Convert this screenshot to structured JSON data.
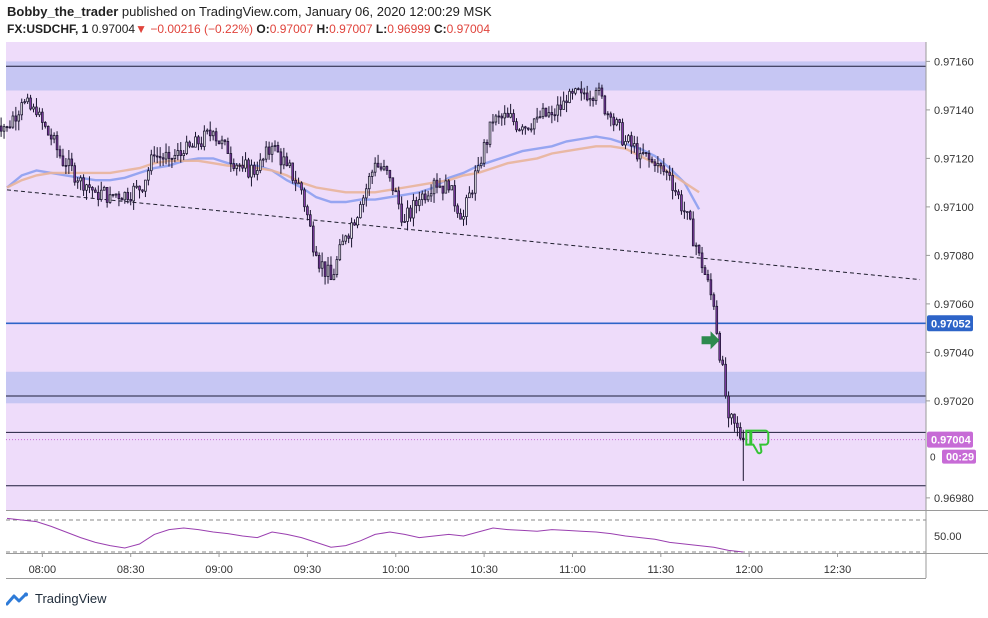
{
  "header": {
    "author": "Bobby_the_trader",
    "published_text": "published on TradingView.com, January 06, 2020 12:00:29 MSK",
    "symbol": "FX:USDCHF, 1",
    "last": "0.97004",
    "change": "−0.00216 (−0.22%)",
    "o_label": "O:",
    "o_value": "0.97007",
    "h_label": "H:",
    "h_value": "0.97007",
    "l_label": "L:",
    "l_value": "0.96999",
    "c_label": "C:",
    "c_value": "0.97004"
  },
  "price_axis": {
    "ticks": [
      "0.97160",
      "0.97140",
      "0.97120",
      "0.97100",
      "0.97080",
      "0.97060",
      "0.97040",
      "0.97020",
      "0.96980"
    ],
    "tick_values": [
      0.9716,
      0.9714,
      0.9712,
      0.971,
      0.9708,
      0.9706,
      0.9704,
      0.9702,
      0.9698
    ],
    "level_badge": "0.97052",
    "price_badge": "0.97004",
    "countdown_badge": "00:29",
    "hidden_tick_glyph": "0"
  },
  "rsi_axis": {
    "tick": "50.00"
  },
  "time_axis": {
    "ticks": [
      "08:00",
      "08:30",
      "09:00",
      "09:30",
      "10:00",
      "10:30",
      "11:00",
      "11:30",
      "12:00",
      "12:30"
    ]
  },
  "footer": {
    "brand": "TradingView",
    "logo_icon": "tradingview-logo-icon"
  },
  "colors": {
    "background": "#eedcfa",
    "zone": "#c6c6f3",
    "candle_body": "#8b3fb0",
    "candle_border": "#1b1530",
    "level_line": "#1d1d3a",
    "blue_level": "#2d64c8",
    "ma_blue": "#8c9eef",
    "ma_orange": "#e8b49a",
    "rsi_line": "#9a3fb0",
    "badge_purple": "#c76bd6",
    "badge_blue": "#2d64c8",
    "arrow_green": "#2d8a4e",
    "thumb_green": "#34c434"
  },
  "chart_data": [
    {
      "type": "candlestick",
      "title": "FX:USDCHF, 1",
      "x_range": [
        "07:48",
        "12:58"
      ],
      "ylim": [
        0.96975,
        0.97168
      ],
      "grid": false,
      "horizontal_zones": [
        [
          0.97148,
          0.9716
        ],
        [
          0.97019,
          0.97032
        ]
      ],
      "horizontal_levels": [
        0.97158,
        0.97052,
        0.97022,
        0.97007,
        0.96985
      ],
      "current_price_line": 0.97004,
      "trendline": {
        "start": [
          "07:48",
          0.97107
        ],
        "end": [
          "12:58",
          0.9707
        ]
      },
      "series": [
        {
          "name": "USDCHF",
          "x": [
            "07:48",
            "07:53",
            "07:58",
            "08:03",
            "08:08",
            "08:13",
            "08:18",
            "08:23",
            "08:28",
            "08:33",
            "08:38",
            "08:43",
            "08:48",
            "08:53",
            "08:58",
            "09:03",
            "09:08",
            "09:13",
            "09:18",
            "09:23",
            "09:28",
            "09:33",
            "09:38",
            "09:43",
            "09:48",
            "09:53",
            "09:58",
            "10:03",
            "10:08",
            "10:13",
            "10:18",
            "10:23",
            "10:28",
            "10:33",
            "10:38",
            "10:43",
            "10:48",
            "10:53",
            "10:58",
            "11:03",
            "11:08",
            "11:13",
            "11:18",
            "11:23",
            "11:28",
            "11:33",
            "11:38",
            "11:43",
            "11:48",
            "11:53",
            "11:58"
          ],
          "close": [
            0.97133,
            0.97143,
            0.97138,
            0.97128,
            0.97117,
            0.97112,
            0.97106,
            0.97105,
            0.97106,
            0.97107,
            0.97121,
            0.9712,
            0.97122,
            0.97126,
            0.97131,
            0.97122,
            0.97116,
            0.97115,
            0.97125,
            0.97117,
            0.97107,
            0.9708,
            0.9707,
            0.97088,
            0.97101,
            0.97118,
            0.97112,
            0.97094,
            0.97103,
            0.97111,
            0.97107,
            0.97096,
            0.97117,
            0.97135,
            0.97137,
            0.97133,
            0.97137,
            0.97138,
            0.97143,
            0.97147,
            0.97148,
            0.97137,
            0.97127,
            0.97122,
            0.97117,
            0.97113,
            0.97098,
            0.97081,
            0.97059,
            0.97013,
            0.97004
          ]
        },
        {
          "name": "MA fast",
          "values": [
            0.97108,
            0.97113,
            0.97115,
            0.97114,
            0.97113,
            0.97112,
            0.97111,
            0.97111,
            0.97112,
            0.97114,
            0.97116,
            0.97117,
            0.97119,
            0.9712,
            0.9712,
            0.97118,
            0.97117,
            0.97117,
            0.97115,
            0.97111,
            0.97108,
            0.97104,
            0.97102,
            0.97102,
            0.97103,
            0.97103,
            0.97104,
            0.97105,
            0.97106,
            0.97108,
            0.97112,
            0.97114,
            0.97117,
            0.97119,
            0.97121,
            0.97123,
            0.97124,
            0.97125,
            0.97127,
            0.97128,
            0.97129,
            0.97128,
            0.97126,
            0.97124,
            0.97121,
            0.97116,
            0.9711,
            0.97099
          ]
        },
        {
          "name": "MA slow",
          "values": [
            0.97108,
            0.97111,
            0.97113,
            0.97114,
            0.97114,
            0.97114,
            0.97114,
            0.97114,
            0.97115,
            0.97116,
            0.97118,
            0.97119,
            0.97119,
            0.97119,
            0.97118,
            0.97117,
            0.97117,
            0.97116,
            0.97115,
            0.97113,
            0.9711,
            0.97108,
            0.97107,
            0.97106,
            0.97106,
            0.97106,
            0.97107,
            0.97108,
            0.97109,
            0.9711,
            0.97111,
            0.97113,
            0.97114,
            0.97116,
            0.97118,
            0.97119,
            0.9712,
            0.97122,
            0.97123,
            0.97124,
            0.97125,
            0.97125,
            0.97124,
            0.97121,
            0.97118,
            0.97114,
            0.9711,
            0.97106
          ]
        }
      ]
    },
    {
      "type": "line",
      "x_range": [
        "07:48",
        "11:58"
      ],
      "ylim": [
        30,
        80
      ],
      "reference_levels": [
        70,
        30
      ],
      "series": [
        {
          "name": "RSI",
          "values": [
            72,
            70,
            68,
            62,
            55,
            48,
            42,
            38,
            35,
            40,
            52,
            58,
            60,
            58,
            55,
            53,
            50,
            48,
            55,
            52,
            48,
            42,
            36,
            38,
            44,
            52,
            55,
            52,
            48,
            50,
            52,
            50,
            55,
            60,
            58,
            57,
            56,
            58,
            57,
            56,
            55,
            53,
            50,
            48,
            46,
            42,
            40,
            38,
            36,
            32,
            30
          ]
        }
      ]
    }
  ]
}
